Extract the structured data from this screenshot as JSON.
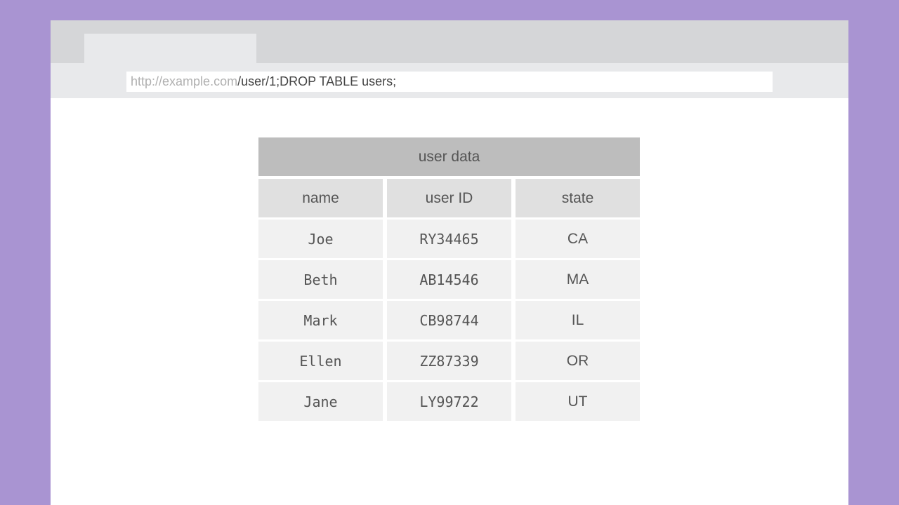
{
  "browser": {
    "url_host": "http://example.com",
    "url_path": "/user/1;DROP TABLE users;"
  },
  "table": {
    "caption": "user data",
    "columns": [
      "name",
      "user ID",
      "state"
    ],
    "rows": [
      [
        "Joe",
        "RY34465",
        "CA"
      ],
      [
        "Beth",
        "AB14546",
        "MA"
      ],
      [
        "Mark",
        "CB98744",
        "IL"
      ],
      [
        "Ellen",
        "ZZ87339",
        "OR"
      ],
      [
        "Jane",
        "LY99722",
        "UT"
      ]
    ]
  }
}
